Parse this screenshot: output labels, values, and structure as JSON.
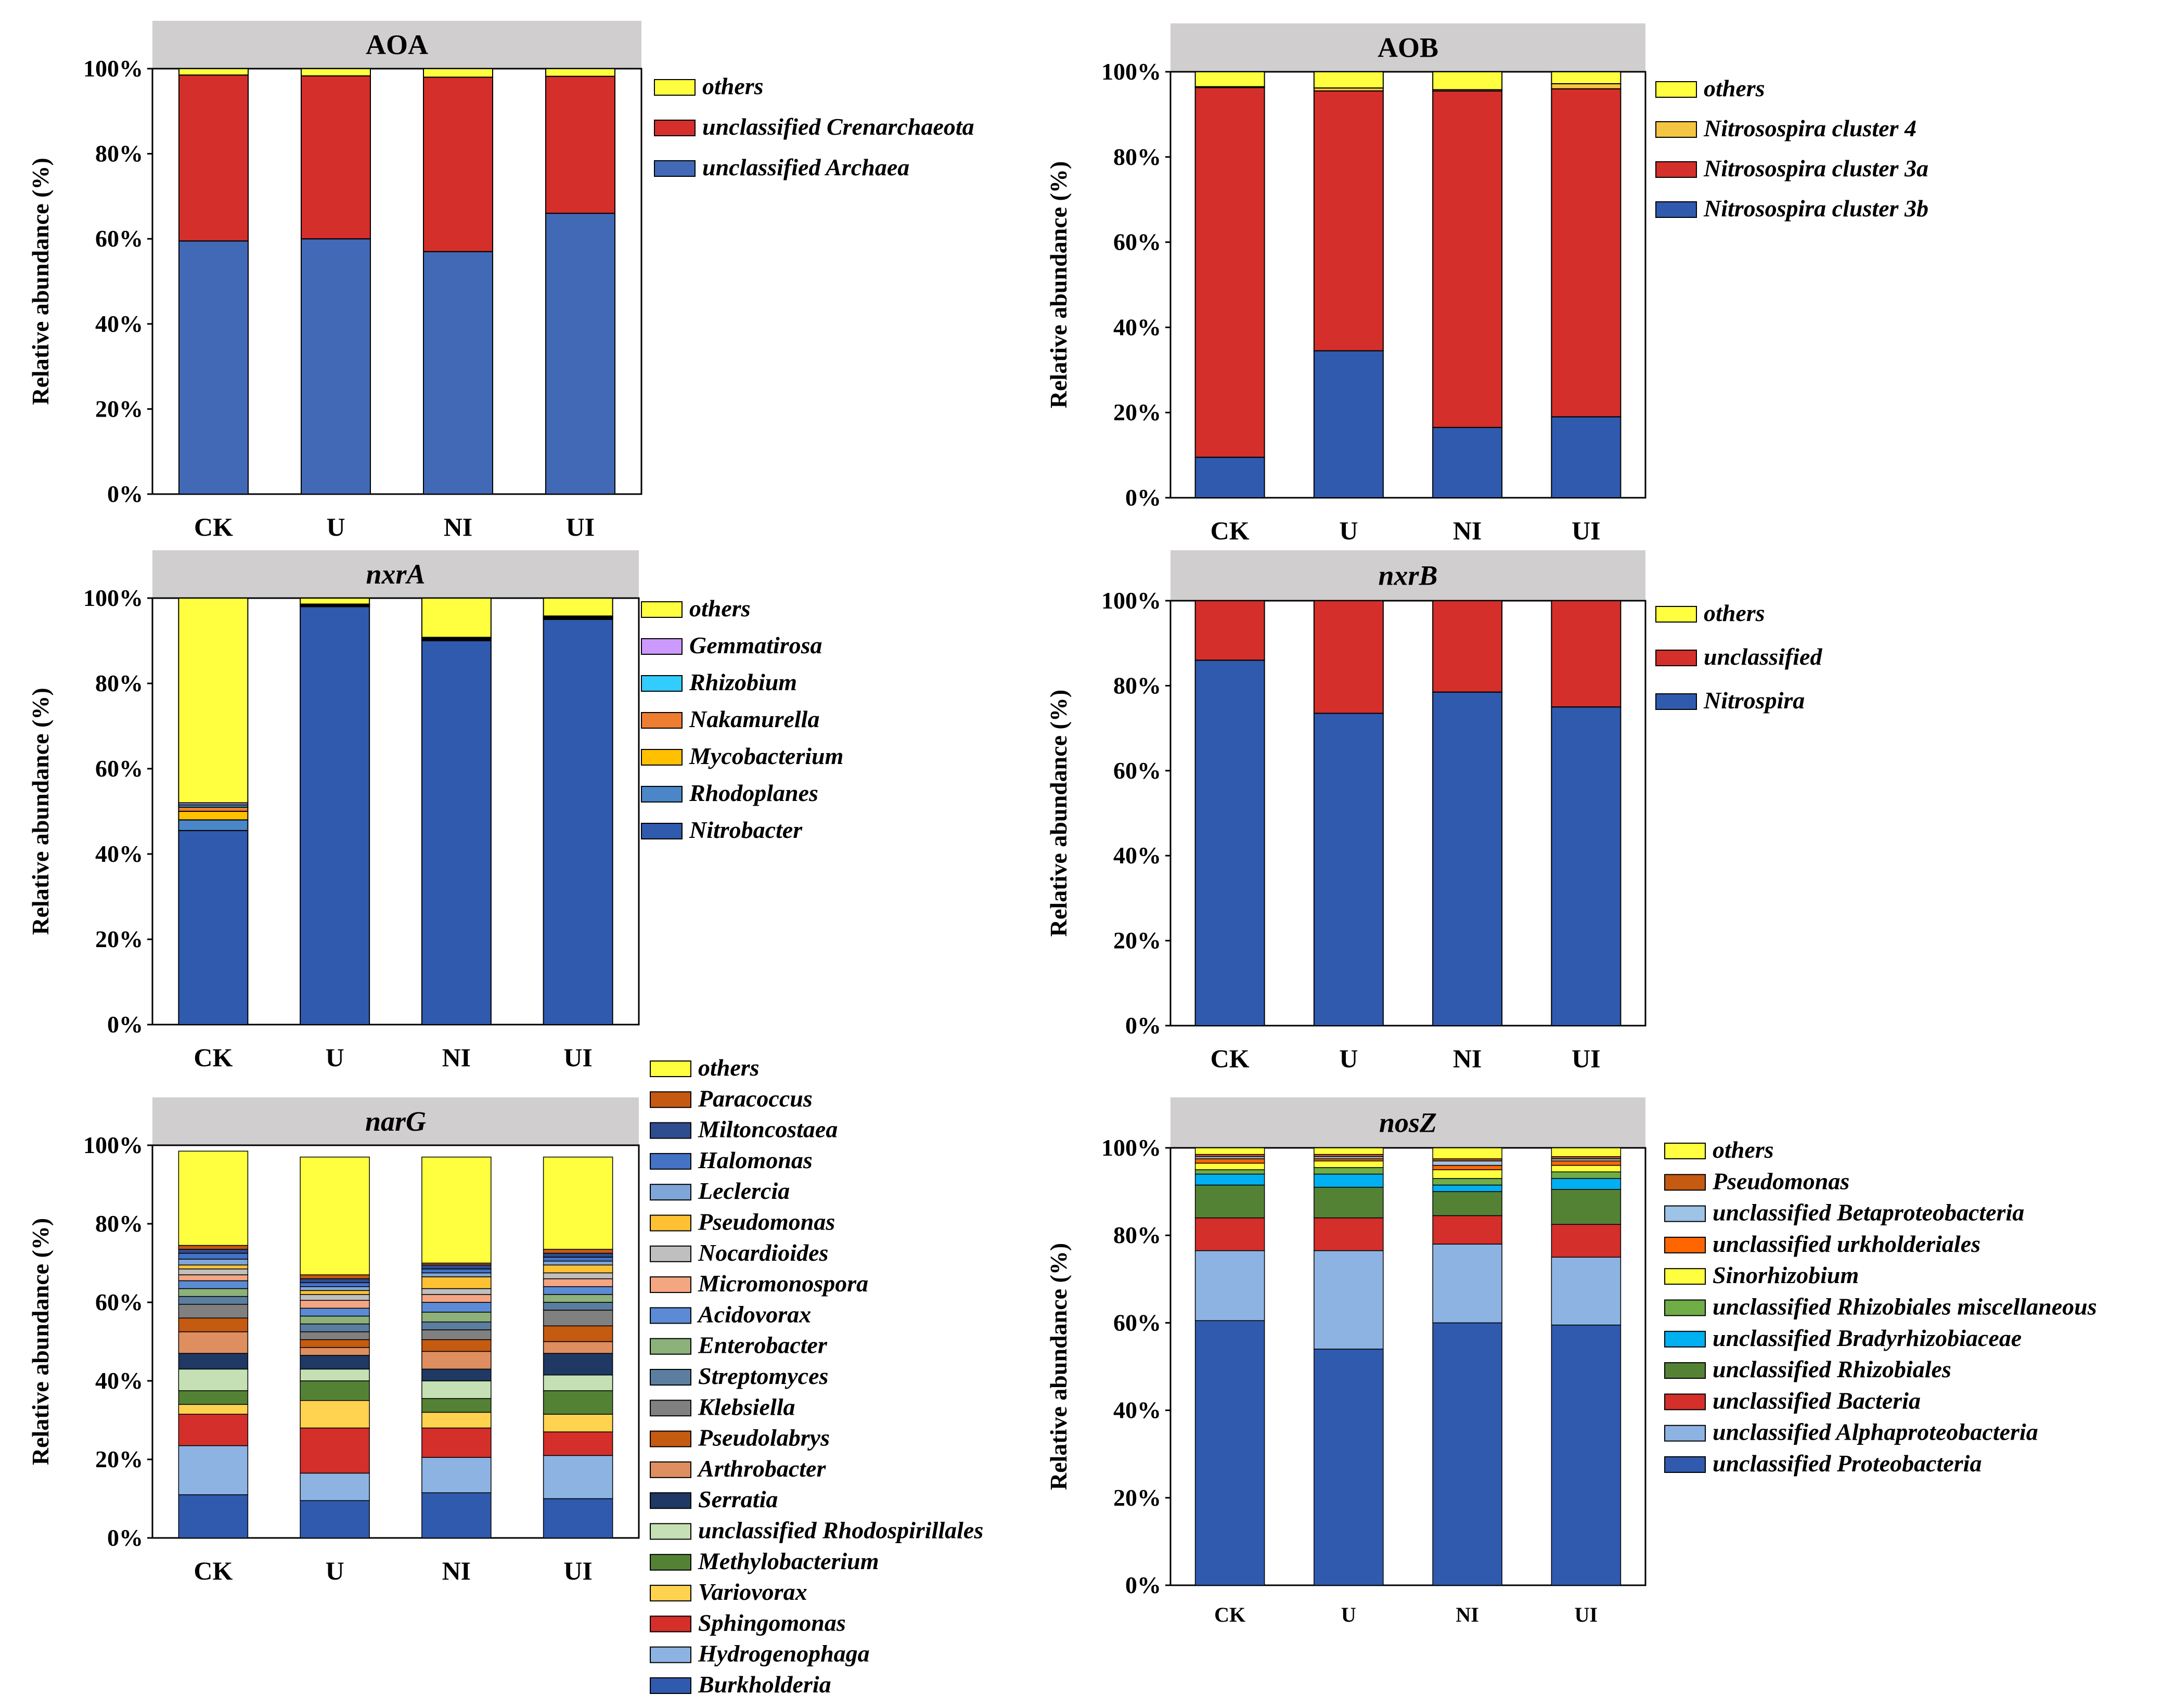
{
  "colors": {
    "others": "#FFFF3F",
    "red": "#D42F2A",
    "blue": "#2F5AAE",
    "blue_light": "#4169B6",
    "header": "#D0CECE"
  },
  "y_ticks": [
    "0%",
    "20%",
    "40%",
    "60%",
    "80%",
    "100%"
  ],
  "y_label": "Relative abundance (%)",
  "chart_data": [
    {
      "id": "aoa",
      "type": "bar",
      "stacked": true,
      "title": "AOA",
      "title_italic": false,
      "ylabel": "Relative abundance (%)",
      "ylim": [
        0,
        100
      ],
      "categories": [
        "CK",
        "U",
        "NI",
        "UI"
      ],
      "series": [
        {
          "name": "unclassified Archaea",
          "color": "#4169B6",
          "values": [
            59.5,
            60,
            57,
            66
          ]
        },
        {
          "name": "unclassified Crenarchaeota",
          "color": "#D42F2A",
          "values": [
            39,
            38.3,
            41,
            32.2
          ]
        },
        {
          "name": "others",
          "color": "#FFFF3F",
          "values": [
            1.5,
            1.7,
            2,
            1.8
          ]
        }
      ]
    },
    {
      "id": "aob",
      "type": "bar",
      "stacked": true,
      "title": "AOB",
      "title_italic": false,
      "ylabel": "Relative abundance (%)",
      "ylim": [
        0,
        100
      ],
      "categories": [
        "CK",
        "U",
        "NI",
        "UI"
      ],
      "series": [
        {
          "name": "Nitrosospira cluster 3b",
          "color": "#2F5AAE",
          "values": [
            9.5,
            34.5,
            16.5,
            19
          ]
        },
        {
          "name": "Nitrosospira cluster 3a",
          "color": "#D42F2A",
          "values": [
            86.8,
            61,
            79,
            77
          ]
        },
        {
          "name": "Nitrosospira cluster 4",
          "color": "#F4C542",
          "values": [
            0.2,
            0.7,
            0.3,
            1.2
          ]
        },
        {
          "name": "others",
          "color": "#FFFF3F",
          "values": [
            3.5,
            3.8,
            4.2,
            2.8
          ]
        }
      ]
    },
    {
      "id": "nxra",
      "type": "bar",
      "stacked": true,
      "title": "nxrA",
      "title_italic": true,
      "ylabel": "Relative abundance (%)",
      "ylim": [
        0,
        100
      ],
      "categories": [
        "CK",
        "U",
        "NI",
        "UI"
      ],
      "series": [
        {
          "name": "Nitrobacter",
          "color": "#2F5AAE",
          "values": [
            45.5,
            98,
            90,
            95
          ]
        },
        {
          "name": "Rhodoplanes",
          "color": "#4A86C8",
          "values": [
            2.5,
            0.2,
            0.2,
            0.2
          ]
        },
        {
          "name": "Mycobacterium",
          "color": "#FFC000",
          "values": [
            2,
            0.1,
            0.1,
            0.1
          ]
        },
        {
          "name": "Nakamurella",
          "color": "#ED7D31",
          "values": [
            1,
            0.1,
            0.2,
            0.2
          ]
        },
        {
          "name": "Rhizobium",
          "color": "#33CCFF",
          "values": [
            0.5,
            0.1,
            0.1,
            0.1
          ]
        },
        {
          "name": "Gemmatirosa",
          "color": "#CC99FF",
          "values": [
            0.5,
            0.1,
            0.2,
            0.2
          ]
        },
        {
          "name": "others",
          "color": "#FFFF3F",
          "values": [
            48,
            1.4,
            9.2,
            4.2
          ]
        }
      ]
    },
    {
      "id": "nxrb",
      "type": "bar",
      "stacked": true,
      "title": "nxrB",
      "title_italic": true,
      "ylabel": "Relative abundance (%)",
      "ylim": [
        0,
        100
      ],
      "categories": [
        "CK",
        "U",
        "NI",
        "UI"
      ],
      "series": [
        {
          "name": "Nitrospira",
          "color": "#2F5AAE",
          "values": [
            86,
            73.5,
            78.5,
            75
          ]
        },
        {
          "name": "unclassified",
          "color": "#D42F2A",
          "values": [
            14,
            26.5,
            21.5,
            25
          ]
        },
        {
          "name": "others",
          "color": "#FFFF3F",
          "values": [
            0,
            0,
            0,
            0
          ]
        }
      ]
    },
    {
      "id": "narg",
      "type": "bar",
      "stacked": true,
      "title": "narG",
      "title_italic": true,
      "ylabel": "Relative abundance (%)",
      "ylim": [
        0,
        100
      ],
      "categories": [
        "CK",
        "U",
        "NI",
        "UI"
      ],
      "series": [
        {
          "name": "Burkholderia",
          "color": "#2F5AAE",
          "values": [
            11,
            9.5,
            11.5,
            10
          ]
        },
        {
          "name": "Hydrogenophaga",
          "color": "#8DB3E2",
          "values": [
            12.5,
            7,
            9,
            11
          ]
        },
        {
          "name": "Sphingomonas",
          "color": "#D42F2A",
          "values": [
            8,
            11.5,
            7.5,
            6
          ]
        },
        {
          "name": "Variovorax",
          "color": "#FFD24F",
          "values": [
            2.5,
            7,
            4,
            4.5
          ]
        },
        {
          "name": "Methylobacterium",
          "color": "#548235",
          "values": [
            3.5,
            5,
            3.5,
            6
          ]
        },
        {
          "name": "unclassified Rhodospirillales",
          "color": "#C5E0B4",
          "values": [
            5.5,
            3,
            4.5,
            4
          ]
        },
        {
          "name": "Serratia",
          "color": "#1F3864",
          "values": [
            4,
            3.5,
            3,
            5.5
          ]
        },
        {
          "name": "Arthrobacter",
          "color": "#DF8E5F",
          "values": [
            5.5,
            2,
            4.5,
            3
          ]
        },
        {
          "name": "Pseudolabrys",
          "color": "#C55A11",
          "values": [
            3.5,
            2,
            3,
            4
          ]
        },
        {
          "name": "Klebsiella",
          "color": "#808080",
          "values": [
            3.5,
            2,
            2.5,
            4
          ]
        },
        {
          "name": "Streptomyces",
          "color": "#5B7EA0",
          "values": [
            2,
            2,
            2,
            2
          ]
        },
        {
          "name": "Enterobacter",
          "color": "#8DB17A",
          "values": [
            2,
            2,
            2.5,
            2
          ]
        },
        {
          "name": "Acidovorax",
          "color": "#5B8BD5",
          "values": [
            2,
            2,
            2.5,
            2
          ]
        },
        {
          "name": "Micromonospora",
          "color": "#F4A582",
          "values": [
            1.5,
            2,
            2,
            2
          ]
        },
        {
          "name": "Nocardioides",
          "color": "#BFBFBF",
          "values": [
            1.5,
            1.5,
            1.5,
            1.5
          ]
        },
        {
          "name": "Pseudomonas",
          "color": "#FFC134",
          "values": [
            1,
            1,
            3,
            2
          ]
        },
        {
          "name": "Leclercia",
          "color": "#7EA6D8",
          "values": [
            1.5,
            1,
            1,
            1
          ]
        },
        {
          "name": "Halomonas",
          "color": "#4472C4",
          "values": [
            1.5,
            1,
            1,
            1
          ]
        },
        {
          "name": "Miltoncostaea",
          "color": "#2E4D8F",
          "values": [
            1,
            1,
            1,
            1
          ]
        },
        {
          "name": "Paracoccus",
          "color": "#C65911",
          "values": [
            1,
            1,
            0.5,
            1
          ]
        },
        {
          "name": "others",
          "color": "#FFFF3F",
          "values": [
            24,
            30,
            27,
            23.5
          ]
        }
      ]
    },
    {
      "id": "nosz",
      "type": "bar",
      "stacked": true,
      "title": "nosZ",
      "title_italic": true,
      "ylabel": "Relative abundance (%)",
      "ylim": [
        0,
        100
      ],
      "categories": [
        "CK",
        "U",
        "NI",
        "UI"
      ],
      "series": [
        {
          "name": "unclassified Proteobacteria",
          "color": "#2F5AAE",
          "values": [
            60.5,
            54,
            60,
            59.5
          ]
        },
        {
          "name": "unclassified Alphaproteobacteria",
          "color": "#8DB3E2",
          "values": [
            16,
            22.5,
            18,
            15.5
          ]
        },
        {
          "name": "unclassified Bacteria",
          "color": "#D42F2A",
          "values": [
            7.5,
            7.5,
            6.5,
            7.5
          ]
        },
        {
          "name": "unclassified Rhizobiales",
          "color": "#548235",
          "values": [
            7.5,
            7,
            5.5,
            8
          ]
        },
        {
          "name": "unclassified Bradyrhizobiaceae",
          "color": "#00B0F0",
          "values": [
            2.5,
            3,
            1.5,
            2.5
          ]
        },
        {
          "name": "unclassified Rhizobiales miscellaneous",
          "color": "#70AD47",
          "values": [
            1,
            1.5,
            1.5,
            1.5
          ]
        },
        {
          "name": "Sinorhizobium",
          "color": "#FFFF3F",
          "values": [
            1.5,
            1.5,
            2,
            1.5
          ]
        },
        {
          "name": "unclassified urkholderiales",
          "color": "#FF6600",
          "values": [
            1,
            0.5,
            1,
            1
          ]
        },
        {
          "name": "unclassified Betaproteobacteria",
          "color": "#9DC3E6",
          "values": [
            0.5,
            0.5,
            1,
            0.5
          ]
        },
        {
          "name": "Pseudomonas",
          "color": "#C55A11",
          "values": [
            0.5,
            0.5,
            0.5,
            0.5
          ]
        },
        {
          "name": "others",
          "color": "#FFFF3F",
          "values": [
            1.5,
            1.5,
            2.5,
            2
          ]
        }
      ]
    }
  ]
}
